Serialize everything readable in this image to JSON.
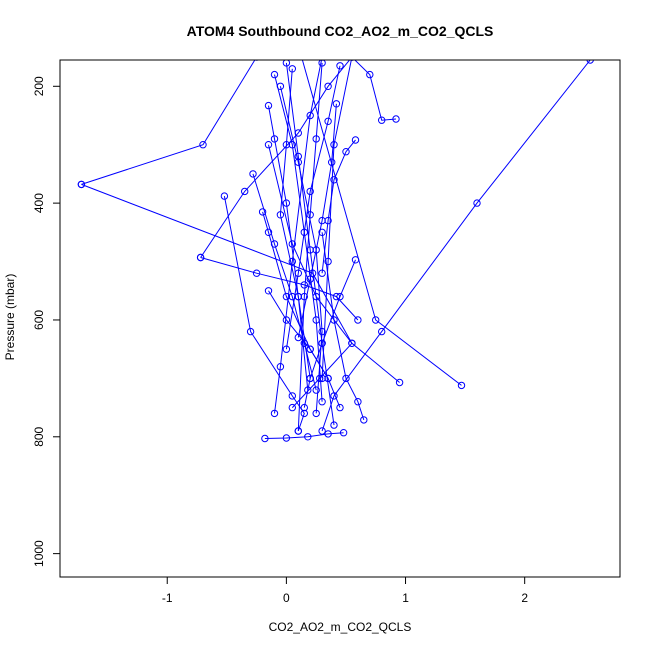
{
  "chart_data": {
    "type": "line",
    "title": "ATOM4 Southbound CO2_AO2_m_CO2_QCLS",
    "xlabel": "CO2_AO2_m_CO2_QCLS",
    "ylabel": "Pressure (mbar)",
    "xlim": [
      -1.9,
      2.8
    ],
    "ylim": [
      1040,
      155
    ],
    "y_reversed": true,
    "x_ticks": [
      -1,
      0,
      1,
      2
    ],
    "x_tick_labels": [
      "-1",
      "0",
      "1",
      "2"
    ],
    "y_ticks": [
      200,
      400,
      600,
      800,
      1000
    ],
    "y_tick_labels": [
      "200",
      "400",
      "600",
      "800",
      "1000"
    ],
    "grid": false,
    "line_color": "#0000ff",
    "marker": "open-circle",
    "series": [
      {
        "x": [
          -1.72,
          -0.7,
          -0.25,
          0.1,
          0.75,
          1.47
        ],
        "y": [
          368,
          300,
          150,
          130,
          600,
          712
        ]
      },
      {
        "x": [
          -1.72,
          0.22,
          0.55,
          0.28,
          0.05
        ],
        "y": [
          368,
          520,
          640,
          700,
          750
        ]
      },
      {
        "x": [
          -0.52,
          -0.3,
          0.05,
          0.15,
          0.1
        ],
        "y": [
          388,
          620,
          730,
          760,
          790
        ]
      },
      {
        "x": [
          -0.72,
          -0.35,
          0.1,
          0.35,
          0.55
        ],
        "y": [
          493,
          380,
          280,
          200,
          150
        ]
      },
      {
        "x": [
          -0.72,
          -0.25,
          0.15,
          0.42,
          0.6
        ],
        "y": [
          493,
          520,
          540,
          560,
          600
        ]
      },
      {
        "x": [
          0.92,
          0.8,
          0.7,
          0.55,
          0.4,
          0.35,
          0.3
        ],
        "y": [
          256,
          258,
          180,
          150,
          300,
          500,
          700
        ]
      },
      {
        "x": [
          0.58,
          0.5,
          0.4,
          0.35,
          0.3
        ],
        "y": [
          292,
          312,
          360,
          430,
          520
        ]
      },
      {
        "x": [
          0.95,
          0.55,
          0.25,
          0.05,
          -0.15
        ],
        "y": [
          707,
          640,
          560,
          470,
          300
        ]
      },
      {
        "x": [
          2.55,
          1.6,
          0.8,
          0.4,
          0.3
        ],
        "y": [
          155,
          400,
          620,
          730,
          790
        ]
      },
      {
        "x": [
          -0.18,
          0.0,
          0.18,
          0.35,
          0.48
        ],
        "y": [
          803,
          802,
          800,
          795,
          793
        ]
      },
      {
        "x": [
          -0.1,
          -0.05,
          0.05,
          0.2,
          0.3
        ],
        "y": [
          760,
          680,
          500,
          250,
          150
        ]
      },
      {
        "x": [
          0.65,
          0.6,
          0.5,
          0.4,
          0.3
        ],
        "y": [
          771,
          740,
          700,
          600,
          450
        ]
      },
      {
        "x": [
          -0.15,
          -0.1,
          0.0,
          0.1,
          0.18
        ],
        "y": [
          233,
          290,
          400,
          560,
          720
        ]
      },
      {
        "x": [
          -0.2,
          -0.15,
          0.0,
          0.2,
          0.35
        ],
        "y": [
          415,
          450,
          560,
          650,
          700
        ]
      },
      {
        "x": [
          -0.1,
          0.05,
          0.15,
          0.25,
          0.3
        ],
        "y": [
          180,
          300,
          450,
          600,
          740
        ]
      },
      {
        "x": [
          0.0,
          0.1,
          0.2,
          0.3,
          0.4
        ],
        "y": [
          160,
          320,
          480,
          640,
          780
        ]
      },
      {
        "x": [
          0.05,
          0.0,
          -0.05,
          0.1,
          0.2
        ],
        "y": [
          170,
          300,
          420,
          560,
          700
        ]
      },
      {
        "x": [
          0.3,
          0.25,
          0.2,
          0.15,
          0.1
        ],
        "y": [
          160,
          290,
          420,
          560,
          790
        ]
      },
      {
        "x": [
          0.45,
          0.35,
          0.2,
          0.1,
          0.0
        ],
        "y": [
          165,
          260,
          380,
          520,
          650
        ]
      },
      {
        "x": [
          0.58,
          0.45,
          0.3,
          0.2,
          0.15
        ],
        "y": [
          497,
          560,
          640,
          700,
          750
        ]
      },
      {
        "x": [
          -0.05,
          0.1,
          0.25,
          0.3,
          0.25
        ],
        "y": [
          200,
          330,
          480,
          620,
          760
        ]
      },
      {
        "x": [
          -0.28,
          -0.1,
          0.05,
          0.15,
          0.25
        ],
        "y": [
          350,
          470,
          560,
          640,
          720
        ]
      },
      {
        "x": [
          -0.15,
          0.0,
          0.2,
          0.35,
          0.45
        ],
        "y": [
          550,
          600,
          650,
          700,
          750
        ]
      },
      {
        "x": [
          0.42,
          0.38,
          0.3,
          0.2,
          0.1
        ],
        "y": [
          230,
          330,
          430,
          530,
          630
        ]
      }
    ]
  }
}
